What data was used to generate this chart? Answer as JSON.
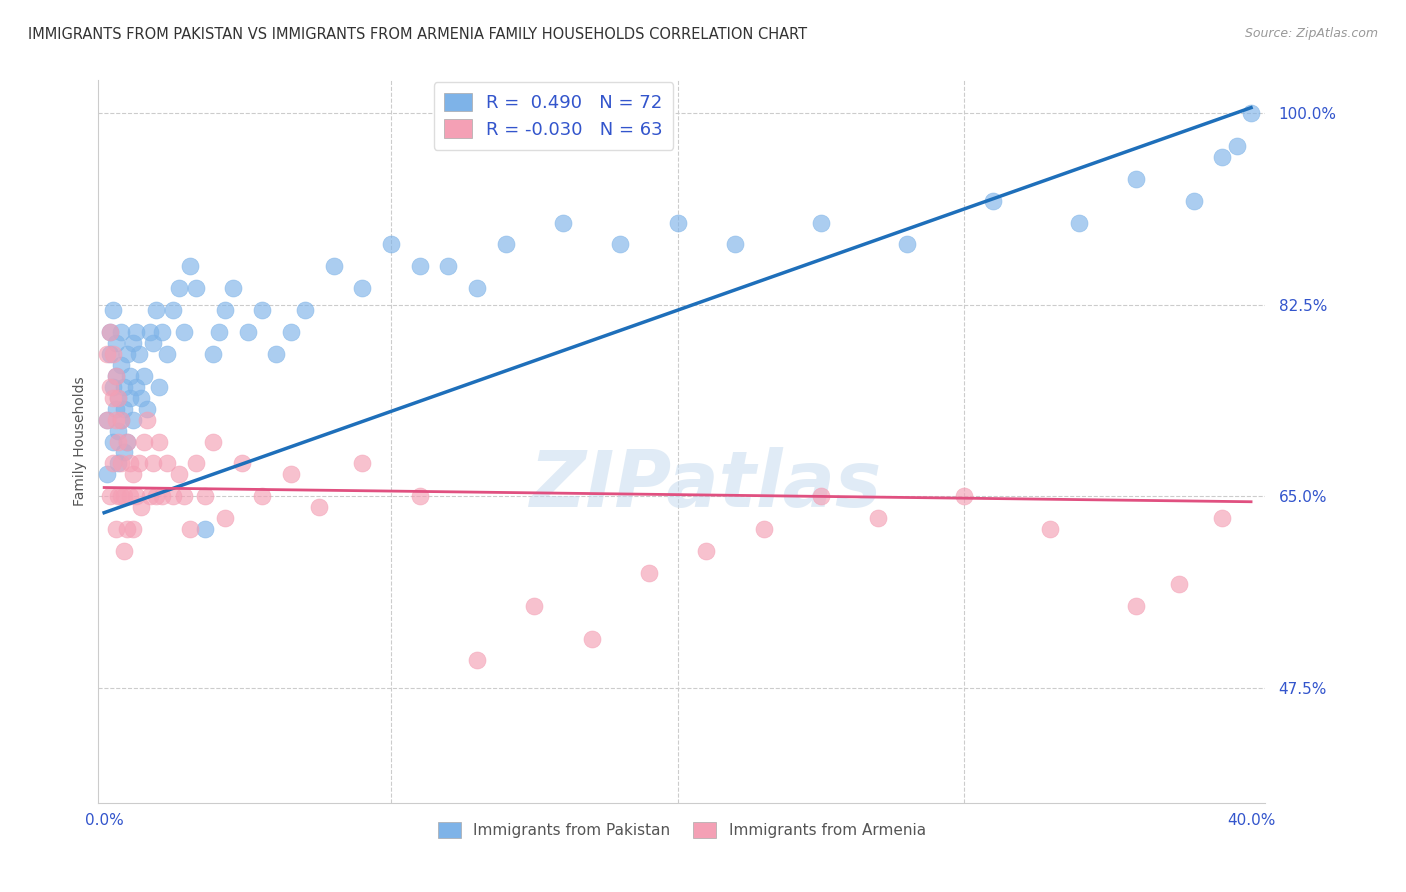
{
  "title": "IMMIGRANTS FROM PAKISTAN VS IMMIGRANTS FROM ARMENIA FAMILY HOUSEHOLDS CORRELATION CHART",
  "source": "Source: ZipAtlas.com",
  "ylabel": "Family Households",
  "color_pakistan": "#7EB3E8",
  "color_armenia": "#F4A0B5",
  "color_trendline_pakistan": "#1E6FBA",
  "color_trendline_armenia": "#E05080",
  "background_color": "#FFFFFF",
  "watermark": "ZIPatlas",
  "ymin": 0.37,
  "ymax": 1.03,
  "xmin": -0.002,
  "xmax": 0.405,
  "ytick_positions": [
    0.475,
    0.65,
    0.825,
    1.0
  ],
  "ytick_labels": [
    "47.5%",
    "65.0%",
    "82.5%",
    "100.0%"
  ],
  "pakistan_x": [
    0.001,
    0.001,
    0.002,
    0.002,
    0.003,
    0.003,
    0.003,
    0.004,
    0.004,
    0.004,
    0.005,
    0.005,
    0.005,
    0.006,
    0.006,
    0.006,
    0.007,
    0.007,
    0.007,
    0.008,
    0.008,
    0.009,
    0.009,
    0.01,
    0.01,
    0.011,
    0.011,
    0.012,
    0.013,
    0.014,
    0.015,
    0.016,
    0.017,
    0.018,
    0.019,
    0.02,
    0.022,
    0.024,
    0.026,
    0.028,
    0.03,
    0.032,
    0.035,
    0.038,
    0.04,
    0.042,
    0.045,
    0.05,
    0.055,
    0.06,
    0.065,
    0.07,
    0.08,
    0.09,
    0.1,
    0.11,
    0.12,
    0.13,
    0.14,
    0.16,
    0.18,
    0.2,
    0.22,
    0.25,
    0.28,
    0.31,
    0.34,
    0.36,
    0.38,
    0.39,
    0.395,
    0.4
  ],
  "pakistan_y": [
    0.67,
    0.72,
    0.78,
    0.8,
    0.75,
    0.82,
    0.7,
    0.76,
    0.73,
    0.79,
    0.68,
    0.74,
    0.71,
    0.77,
    0.72,
    0.8,
    0.69,
    0.75,
    0.73,
    0.78,
    0.7,
    0.76,
    0.74,
    0.79,
    0.72,
    0.8,
    0.75,
    0.78,
    0.74,
    0.76,
    0.73,
    0.8,
    0.79,
    0.82,
    0.75,
    0.8,
    0.78,
    0.82,
    0.84,
    0.8,
    0.86,
    0.84,
    0.62,
    0.78,
    0.8,
    0.82,
    0.84,
    0.8,
    0.82,
    0.78,
    0.8,
    0.82,
    0.86,
    0.84,
    0.88,
    0.86,
    0.86,
    0.84,
    0.88,
    0.9,
    0.88,
    0.9,
    0.88,
    0.9,
    0.88,
    0.92,
    0.9,
    0.94,
    0.92,
    0.96,
    0.97,
    1.0
  ],
  "armenia_x": [
    0.001,
    0.001,
    0.002,
    0.002,
    0.002,
    0.003,
    0.003,
    0.003,
    0.004,
    0.004,
    0.004,
    0.005,
    0.005,
    0.005,
    0.006,
    0.006,
    0.006,
    0.007,
    0.007,
    0.008,
    0.008,
    0.009,
    0.009,
    0.01,
    0.01,
    0.011,
    0.012,
    0.013,
    0.014,
    0.015,
    0.016,
    0.017,
    0.018,
    0.019,
    0.02,
    0.022,
    0.024,
    0.026,
    0.028,
    0.03,
    0.032,
    0.035,
    0.038,
    0.042,
    0.048,
    0.055,
    0.065,
    0.075,
    0.09,
    0.11,
    0.13,
    0.15,
    0.17,
    0.19,
    0.21,
    0.23,
    0.25,
    0.27,
    0.3,
    0.33,
    0.36,
    0.375,
    0.39
  ],
  "armenia_y": [
    0.72,
    0.78,
    0.65,
    0.75,
    0.8,
    0.68,
    0.74,
    0.78,
    0.62,
    0.72,
    0.76,
    0.65,
    0.7,
    0.74,
    0.65,
    0.68,
    0.72,
    0.6,
    0.65,
    0.62,
    0.7,
    0.65,
    0.68,
    0.62,
    0.67,
    0.65,
    0.68,
    0.64,
    0.7,
    0.72,
    0.65,
    0.68,
    0.65,
    0.7,
    0.65,
    0.68,
    0.65,
    0.67,
    0.65,
    0.62,
    0.68,
    0.65,
    0.7,
    0.63,
    0.68,
    0.65,
    0.67,
    0.64,
    0.68,
    0.65,
    0.5,
    0.55,
    0.52,
    0.58,
    0.6,
    0.62,
    0.65,
    0.63,
    0.65,
    0.62,
    0.55,
    0.57,
    0.63
  ],
  "pak_trendline_x0": 0.0,
  "pak_trendline_y0": 0.635,
  "pak_trendline_x1": 0.4,
  "pak_trendline_y1": 1.005,
  "arm_trendline_x0": 0.0,
  "arm_trendline_y0": 0.658,
  "arm_trendline_x1": 0.4,
  "arm_trendline_y1": 0.645
}
